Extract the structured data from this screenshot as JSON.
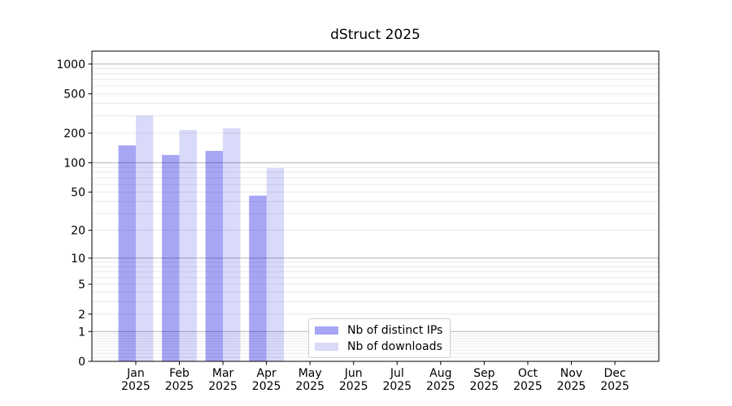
{
  "title": "dStruct 2025",
  "chart_data": {
    "type": "bar",
    "title": "dStruct 2025",
    "categories": [
      "Jan",
      "Feb",
      "Mar",
      "Apr",
      "May",
      "Jun",
      "Jul",
      "Aug",
      "Sep",
      "Oct",
      "Nov",
      "Dec"
    ],
    "x_year_label": "2025",
    "series": [
      {
        "name": "Nb of distinct IPs",
        "color": "rgba(0,0,220,0.35)",
        "values": [
          150,
          120,
          132,
          46,
          null,
          null,
          null,
          null,
          null,
          null,
          null,
          null
        ]
      },
      {
        "name": "Nb of downloads",
        "color": "rgba(0,0,220,0.15)",
        "values": [
          300,
          215,
          224,
          88,
          null,
          null,
          null,
          null,
          null,
          null,
          null,
          null
        ]
      }
    ],
    "y_scale": "log1p",
    "ylim": [
      0,
      1350
    ],
    "y_ticks": [
      0,
      1,
      2,
      5,
      10,
      20,
      50,
      100,
      200,
      500,
      1000
    ],
    "grid": {
      "major_values": [
        1,
        10,
        100,
        1000
      ],
      "minor_values": [
        0.1,
        0.2,
        0.3,
        0.4,
        0.5,
        0.6,
        0.7,
        0.8,
        0.9,
        2,
        3,
        4,
        6,
        7,
        8,
        9,
        20,
        30,
        40,
        60,
        70,
        80,
        90,
        200,
        300,
        400,
        600,
        700,
        800,
        900,
        5,
        50,
        500
      ],
      "major_color": "#b2b2b2",
      "minor_color": "#e9e9e9"
    },
    "legend_position": "lower center-left",
    "axis_color": "#000000",
    "tick_label_color": "#000000",
    "background_color": "#ffffff"
  }
}
